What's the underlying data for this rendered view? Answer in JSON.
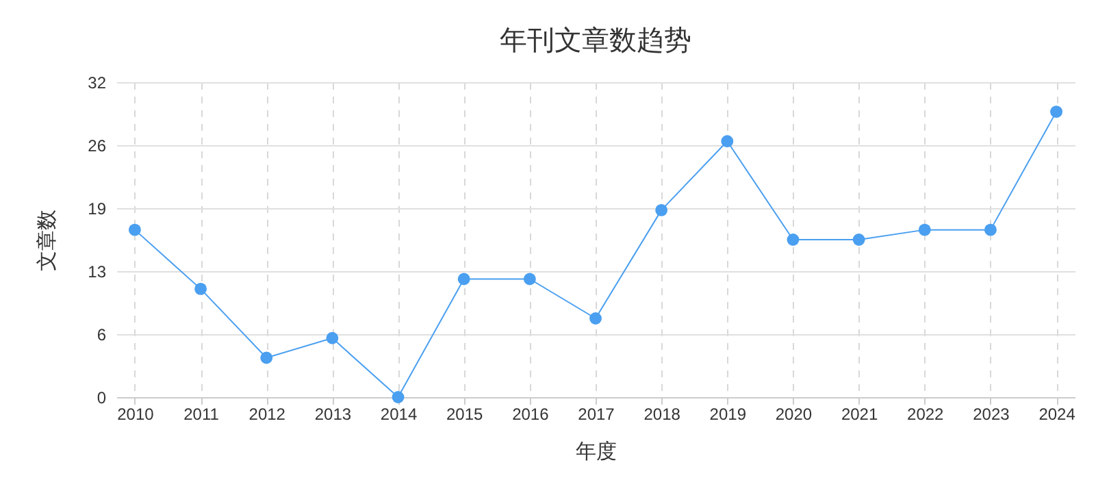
{
  "chart_data": {
    "type": "line",
    "title": "年刊文章数趋势",
    "xlabel": "年度",
    "ylabel": "文章数",
    "categories": [
      "2010",
      "2011",
      "2012",
      "2013",
      "2014",
      "2015",
      "2016",
      "2017",
      "2018",
      "2019",
      "2020",
      "2021",
      "2022",
      "2023",
      "2024"
    ],
    "series": [
      {
        "color": "#4a9ff0",
        "values": [
          17,
          11,
          4,
          6,
          0,
          12,
          12,
          8,
          19,
          26,
          16,
          16,
          17,
          17,
          29
        ]
      }
    ],
    "ylim": [
      0,
      32
    ],
    "yticks": [
      0,
      {
        "value": 6.4,
        "label": "6"
      },
      {
        "value": 12.8,
        "label": "13"
      },
      {
        "value": 19.2,
        "label": "19"
      },
      {
        "value": 25.6,
        "label": "26"
      },
      32
    ],
    "grid": true,
    "marker": "circle",
    "line_style": "solid"
  }
}
